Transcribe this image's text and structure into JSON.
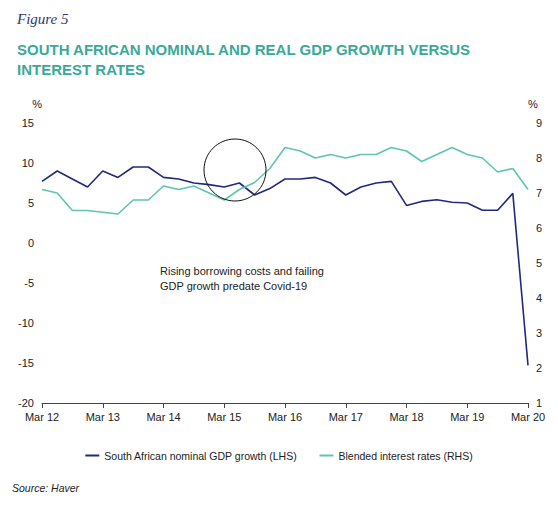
{
  "chart_data": {
    "type": "line",
    "figure_label": "Figure 5",
    "title": "SOUTH AFRICAN NOMINAL AND REAL GDP GROWTH VERSUS INTEREST RATES",
    "source": "Source: Haver",
    "annotation": [
      "Rising borrowing costs and failing",
      "GDP growth predate Covid-19"
    ],
    "y_label": "%",
    "y2_label": "%",
    "categories": [
      "Mar 12",
      null,
      null,
      null,
      "Mar 13",
      null,
      null,
      null,
      "Mar 14",
      null,
      null,
      null,
      "Mar 15",
      null,
      null,
      null,
      "Mar 16",
      null,
      null,
      null,
      "Mar 17",
      null,
      null,
      null,
      "Mar 18",
      null,
      null,
      null,
      "Mar 19",
      null,
      null,
      null,
      "Mar 20"
    ],
    "series": [
      {
        "name": "South African nominal GDP growth (LHS)",
        "color": "#1f2a7c",
        "axis": "y",
        "values": [
          7.7,
          9.0,
          8.0,
          7.0,
          9.0,
          8.2,
          9.5,
          9.5,
          8.2,
          8.0,
          7.5,
          7.3,
          7.0,
          7.5,
          6.0,
          6.8,
          8.0,
          8.0,
          8.2,
          7.5,
          6.0,
          7.0,
          7.5,
          7.7,
          4.7,
          5.2,
          5.4,
          5.1,
          5.0,
          4.1,
          4.1,
          6.2,
          -15.3
        ]
      },
      {
        "name": "Blended interest rates (RHS)",
        "color": "#5ec4b6",
        "axis": "y2",
        "values": [
          7.1,
          7.0,
          6.5,
          6.5,
          6.45,
          6.4,
          6.8,
          6.8,
          7.2,
          7.1,
          7.2,
          7.0,
          6.8,
          7.1,
          7.3,
          7.7,
          8.3,
          8.2,
          8.0,
          8.1,
          8.0,
          8.1,
          8.1,
          8.3,
          8.2,
          7.9,
          8.1,
          8.3,
          8.1,
          8.0,
          7.6,
          7.7,
          7.1
        ]
      }
    ],
    "ylim": [
      -20,
      15
    ],
    "yticks": [
      -20,
      -15,
      -10,
      -5,
      0,
      5,
      10,
      15
    ],
    "y2lim": [
      1,
      9
    ],
    "y2ticks": [
      1,
      2,
      3,
      4,
      5,
      6,
      7,
      8,
      9
    ],
    "grid": false,
    "legend": "bottom"
  }
}
